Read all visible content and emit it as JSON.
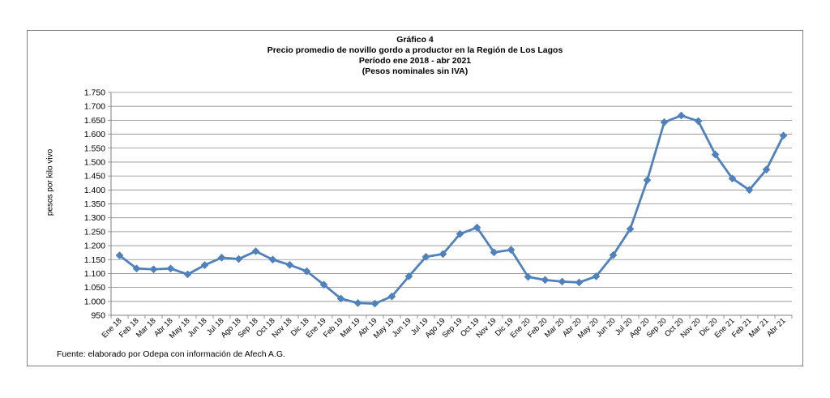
{
  "chart_data": {
    "type": "line",
    "title": "Gráfico 4",
    "subtitle": [
      "Precio promedio de novillo gordo a productor en la Región de Los Lagos",
      "Período ene 2018 - abr 2021",
      "(Pesos nominales sin IVA)"
    ],
    "ylabel": "pesos por kilo vivo",
    "xlabel": "",
    "ylim": [
      950,
      1750
    ],
    "yticks": [
      "950",
      "1.000",
      "1.050",
      "1.100",
      "1.150",
      "1.200",
      "1.250",
      "1.300",
      "1.350",
      "1.400",
      "1.450",
      "1.500",
      "1.550",
      "1.600",
      "1.650",
      "1.700",
      "1.750"
    ],
    "ytick_values": [
      950,
      1000,
      1050,
      1100,
      1150,
      1200,
      1250,
      1300,
      1350,
      1400,
      1450,
      1500,
      1550,
      1600,
      1650,
      1700,
      1750
    ],
    "grid": true,
    "categories": [
      "Ene 18",
      "Feb 18",
      "Mar 18",
      "Abr 18",
      "May 18",
      "Jun 18",
      "Jul 18",
      "Ago 18",
      "Sep 18",
      "Oct 18",
      "Nov 18",
      "Dic 18",
      "Ene 19",
      "Feb 19",
      "Mar 19",
      "Abr 19",
      "May 19",
      "Jun 19",
      "Jul 19",
      "Ago 19",
      "Sep 19",
      "Oct 19",
      "Nov 19",
      "Dic 19",
      "Ene 20",
      "Feb 20",
      "Mar 20",
      "Abr 20",
      "May 20",
      "Jun 20",
      "Jul 20",
      "Ago 20",
      "Sep 20",
      "Oct 20",
      "Nov 20",
      "Dic 20",
      "Ene 21",
      "Feb 21",
      "Mar 21",
      "Abr 21"
    ],
    "series": [
      {
        "color": "#4f81bd",
        "values": [
          1165,
          1118,
          1115,
          1118,
          1097,
          1130,
          1157,
          1152,
          1180,
          1150,
          1131,
          1108,
          1060,
          1010,
          994,
          992,
          1018,
          1090,
          1160,
          1170,
          1242,
          1265,
          1176,
          1185,
          1088,
          1077,
          1071,
          1068,
          1090,
          1166,
          1260,
          1435,
          1643,
          1667,
          1647,
          1527,
          1441,
          1400,
          1473,
          1595
        ]
      }
    ],
    "source": "Fuente: elaborado por Odepa con información de Afech A.G."
  }
}
